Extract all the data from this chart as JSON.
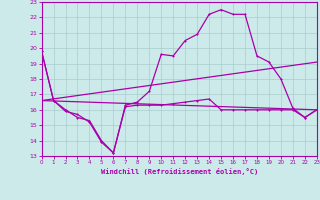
{
  "xlabel": "Windchill (Refroidissement éolien,°C)",
  "xlim": [
    0,
    23
  ],
  "ylim": [
    13,
    23
  ],
  "yticks": [
    13,
    14,
    15,
    16,
    17,
    18,
    19,
    20,
    21,
    22,
    23
  ],
  "xticks": [
    0,
    1,
    2,
    3,
    4,
    5,
    6,
    7,
    8,
    9,
    10,
    11,
    12,
    13,
    14,
    15,
    16,
    17,
    18,
    19,
    20,
    21,
    22,
    23
  ],
  "bg_color": "#cceaea",
  "grid_color": "#aacccc",
  "line_color": "#aa00aa",
  "line1_x": [
    0,
    1,
    2,
    3,
    4,
    5,
    6,
    7,
    8,
    9,
    10,
    11,
    12,
    13,
    14,
    15,
    16,
    17,
    18,
    19,
    20,
    21,
    22,
    23
  ],
  "line1_y": [
    19.8,
    16.6,
    15.9,
    15.7,
    15.2,
    13.9,
    13.2,
    16.2,
    16.3,
    16.3,
    16.3,
    16.4,
    16.5,
    16.6,
    16.7,
    16.0,
    16.0,
    16.0,
    16.0,
    16.0,
    16.0,
    16.0,
    15.5,
    16.0
  ],
  "line2_x": [
    0,
    1,
    2,
    3,
    4,
    5,
    6,
    7,
    8,
    9,
    10,
    11,
    12,
    13,
    14,
    15,
    16,
    17,
    18,
    19,
    20,
    21,
    22,
    23
  ],
  "line2_y": [
    19.8,
    16.6,
    16.0,
    15.5,
    15.3,
    14.0,
    13.2,
    16.3,
    16.5,
    17.2,
    19.6,
    19.5,
    20.5,
    20.9,
    22.2,
    22.5,
    22.2,
    22.2,
    19.5,
    19.1,
    18.0,
    16.1,
    15.5,
    16.0
  ],
  "line3_x": [
    0,
    23
  ],
  "line3_y": [
    16.6,
    19.1
  ],
  "line4_x": [
    0,
    23
  ],
  "line4_y": [
    16.6,
    16.0
  ]
}
